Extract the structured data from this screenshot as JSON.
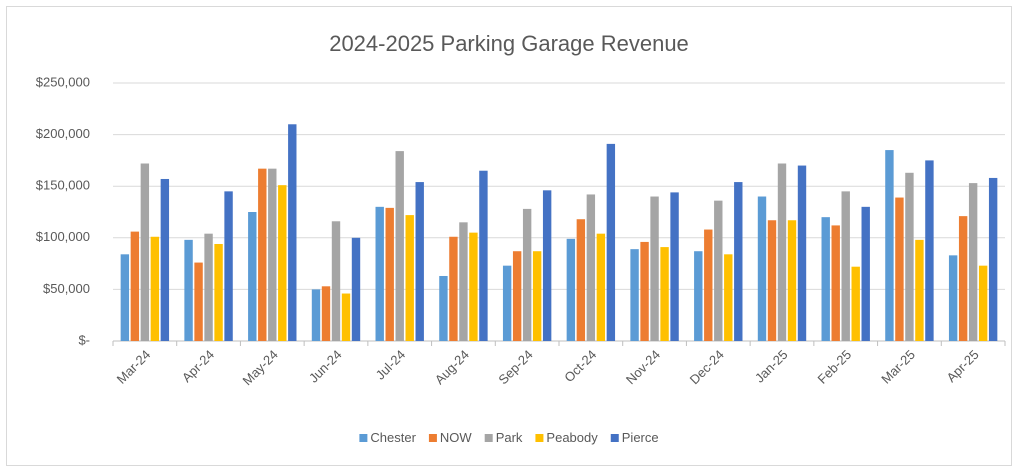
{
  "chart_data": {
    "type": "bar",
    "title": "2024-2025 Parking Garage Revenue",
    "categories": [
      "Mar-24",
      "Apr-24",
      "May-24",
      "Jun-24",
      "Jul-24",
      "Aug-24",
      "Sep-24",
      "Oct-24",
      "Nov-24",
      "Dec-24",
      "Jan-25",
      "Feb-25",
      "Mar-25",
      "Apr-25"
    ],
    "series": [
      {
        "name": "Chester",
        "color": "#5b9bd5",
        "values": [
          84000,
          98000,
          125000,
          50000,
          130000,
          63000,
          73000,
          99000,
          89000,
          87000,
          140000,
          120000,
          185000,
          83000
        ]
      },
      {
        "name": "NOW",
        "color": "#ed7d31",
        "values": [
          106000,
          76000,
          167000,
          53000,
          129000,
          101000,
          87000,
          118000,
          96000,
          108000,
          117000,
          112000,
          139000,
          121000
        ]
      },
      {
        "name": "Park",
        "color": "#a5a5a5",
        "values": [
          172000,
          104000,
          167000,
          116000,
          184000,
          115000,
          128000,
          142000,
          140000,
          136000,
          172000,
          145000,
          163000,
          153000
        ]
      },
      {
        "name": "Peabody",
        "color": "#ffc000",
        "values": [
          101000,
          94000,
          151000,
          46000,
          122000,
          105000,
          87000,
          104000,
          91000,
          84000,
          117000,
          72000,
          98000,
          73000
        ]
      },
      {
        "name": "Pierce",
        "color": "#4472c4",
        "values": [
          157000,
          145000,
          210000,
          100000,
          154000,
          165000,
          146000,
          191000,
          144000,
          154000,
          170000,
          130000,
          175000,
          158000
        ]
      }
    ],
    "ylim": [
      0,
      250000
    ],
    "yticks": [
      {
        "value": 0,
        "label": "$-"
      },
      {
        "value": 50000,
        "label": "$50,000"
      },
      {
        "value": 100000,
        "label": "$100,000"
      },
      {
        "value": 150000,
        "label": "$150,000"
      },
      {
        "value": 200000,
        "label": "$200,000"
      },
      {
        "value": 250000,
        "label": "$250,000"
      }
    ],
    "grid": true,
    "legend": "bottom"
  }
}
